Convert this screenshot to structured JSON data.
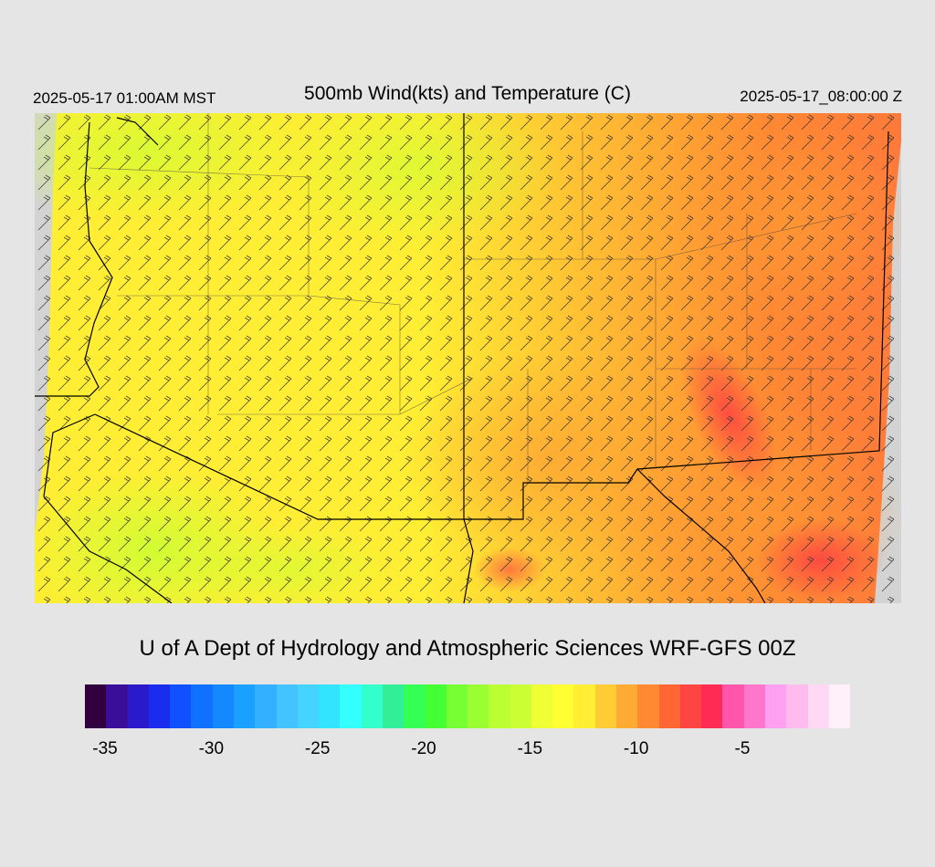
{
  "header": {
    "valid_local": "2025-05-17 01:00AM MST",
    "title": "500mb Wind(kts) and Temperature (C)",
    "valid_utc": "2025-05-17_08:00:00 Z"
  },
  "credit": "U of A Dept of Hydrology and Atmospheric Sciences WRF-GFS 00Z",
  "colors": {
    "background": "#e5e5e5",
    "no_data": "#d3d3d3",
    "temp_low": "#ccff33",
    "temp_mid": "#ffee33",
    "temp_high": "#ff7744",
    "temp_hot": "#ff3344"
  },
  "colorbar": {
    "colors": [
      "#33003f",
      "#3a0e99",
      "#2a1acc",
      "#1a2cee",
      "#1050ff",
      "#1070ff",
      "#1488ff",
      "#1aa0ff",
      "#33b0ff",
      "#44c4ff",
      "#44d4ff",
      "#33e4ff",
      "#33ffff",
      "#33ffcc",
      "#33ee99",
      "#33ff55",
      "#44ff33",
      "#77ff33",
      "#99ff33",
      "#bbff33",
      "#ccff33",
      "#eeff33",
      "#ffff33",
      "#ffee33",
      "#ffcc33",
      "#ffaa33",
      "#ff8833",
      "#ff6633",
      "#ff4444",
      "#ff2b55",
      "#ff55aa",
      "#ff77cc",
      "#ffa0f0",
      "#ffbbee",
      "#ffd8f4",
      "#fff0fa"
    ],
    "ticks": [
      {
        "label": "-35",
        "value": -35
      },
      {
        "label": "-30",
        "value": -30
      },
      {
        "label": "-25",
        "value": -25
      },
      {
        "label": "-20",
        "value": -20
      },
      {
        "label": "-15",
        "value": -15
      },
      {
        "label": "-10",
        "value": -10
      },
      {
        "label": "-5",
        "value": -5
      }
    ],
    "min": -36,
    "max": -1
  }
}
